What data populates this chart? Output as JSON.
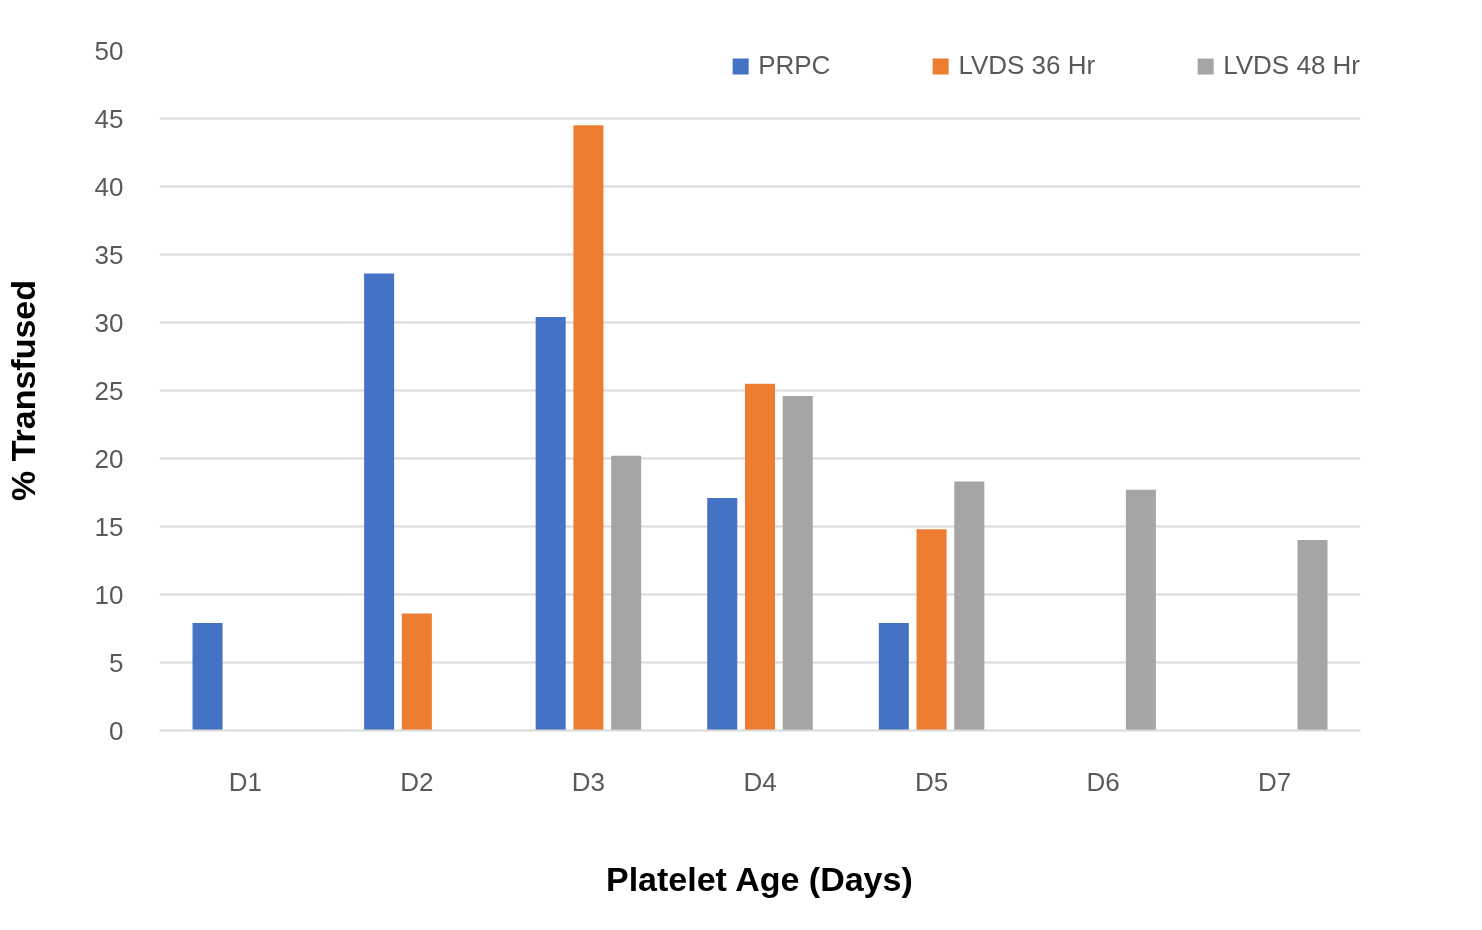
{
  "chart_data": {
    "type": "bar",
    "xlabel": "Platelet Age (Days)",
    "ylabel": "% Transfused",
    "categories": [
      "D1",
      "D2",
      "D3",
      "D4",
      "D5",
      "D6",
      "D7"
    ],
    "series": [
      {
        "name": "PRPC",
        "color": "#4472c4",
        "values": [
          7.9,
          33.6,
          30.4,
          17.1,
          7.9,
          null,
          null
        ]
      },
      {
        "name": "LVDS 36 Hr",
        "color": "#ed7d31",
        "values": [
          null,
          8.6,
          44.5,
          25.5,
          14.8,
          null,
          null
        ]
      },
      {
        "name": "LVDS 48 Hr",
        "color": "#a5a5a5",
        "values": [
          null,
          null,
          20.2,
          24.6,
          18.3,
          17.7,
          14.0
        ]
      }
    ],
    "ylim": [
      0,
      50
    ],
    "yticks": [
      0,
      5,
      10,
      15,
      20,
      25,
      30,
      35,
      40,
      45,
      50
    ],
    "grid": "y",
    "legend": "top right"
  }
}
